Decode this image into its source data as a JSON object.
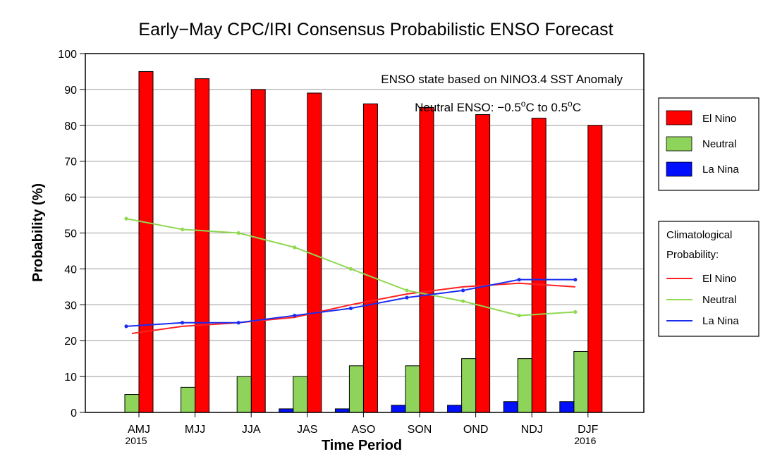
{
  "chart_data": {
    "type": "bar",
    "title": "Early−May CPC/IRI Consensus Probabilistic ENSO Forecast",
    "annotation_line1": "ENSO state based on NINO3.4 SST Anomaly",
    "annotation_line2_prefix": "Neutral ENSO: −0.5",
    "annotation_line2_mid": "C to 0.5",
    "annotation_degree": "o",
    "annotation_unit": "C",
    "xlabel": "Time Period",
    "ylabel": "Probability (%)",
    "ylim": [
      0,
      100
    ],
    "yticks": [
      "0",
      "10",
      "20",
      "30",
      "40",
      "50",
      "60",
      "70",
      "80",
      "90",
      "100"
    ],
    "categories": [
      "AMJ",
      "MJJ",
      "JJA",
      "JAS",
      "ASO",
      "SON",
      "OND",
      "NDJ",
      "DJF"
    ],
    "year_labels": [
      {
        "category_index": 0,
        "text": "2015"
      },
      {
        "category_index": 8,
        "text": "2016"
      }
    ],
    "grid": "horizontal",
    "series": [
      {
        "name": "El Nino",
        "color": "#ff0000",
        "values": [
          95,
          93,
          90,
          89,
          86,
          85,
          83,
          82,
          80
        ]
      },
      {
        "name": "Neutral",
        "color": "#8fd45a",
        "values": [
          5,
          7,
          10,
          10,
          13,
          13,
          15,
          15,
          17
        ]
      },
      {
        "name": "La Nina",
        "color": "#0010ff",
        "values": [
          0,
          0,
          0,
          1,
          1,
          2,
          2,
          3,
          3
        ]
      }
    ],
    "climatology_title_line1": "Climatological",
    "climatology_title_line2": "Probability:",
    "climatology": [
      {
        "name": "El Nino",
        "color": "#ff2020",
        "values": [
          22,
          24,
          25,
          26.5,
          30,
          33,
          35,
          36,
          35
        ]
      },
      {
        "name": "Neutral",
        "color": "#90d850",
        "values": [
          54,
          51,
          50,
          46,
          40,
          34,
          31,
          27,
          28
        ]
      },
      {
        "name": "La Nina",
        "color": "#1a2cf0",
        "values": [
          24,
          25,
          25,
          27,
          29,
          32,
          34,
          37,
          37
        ]
      }
    ],
    "legend_position": "right"
  }
}
